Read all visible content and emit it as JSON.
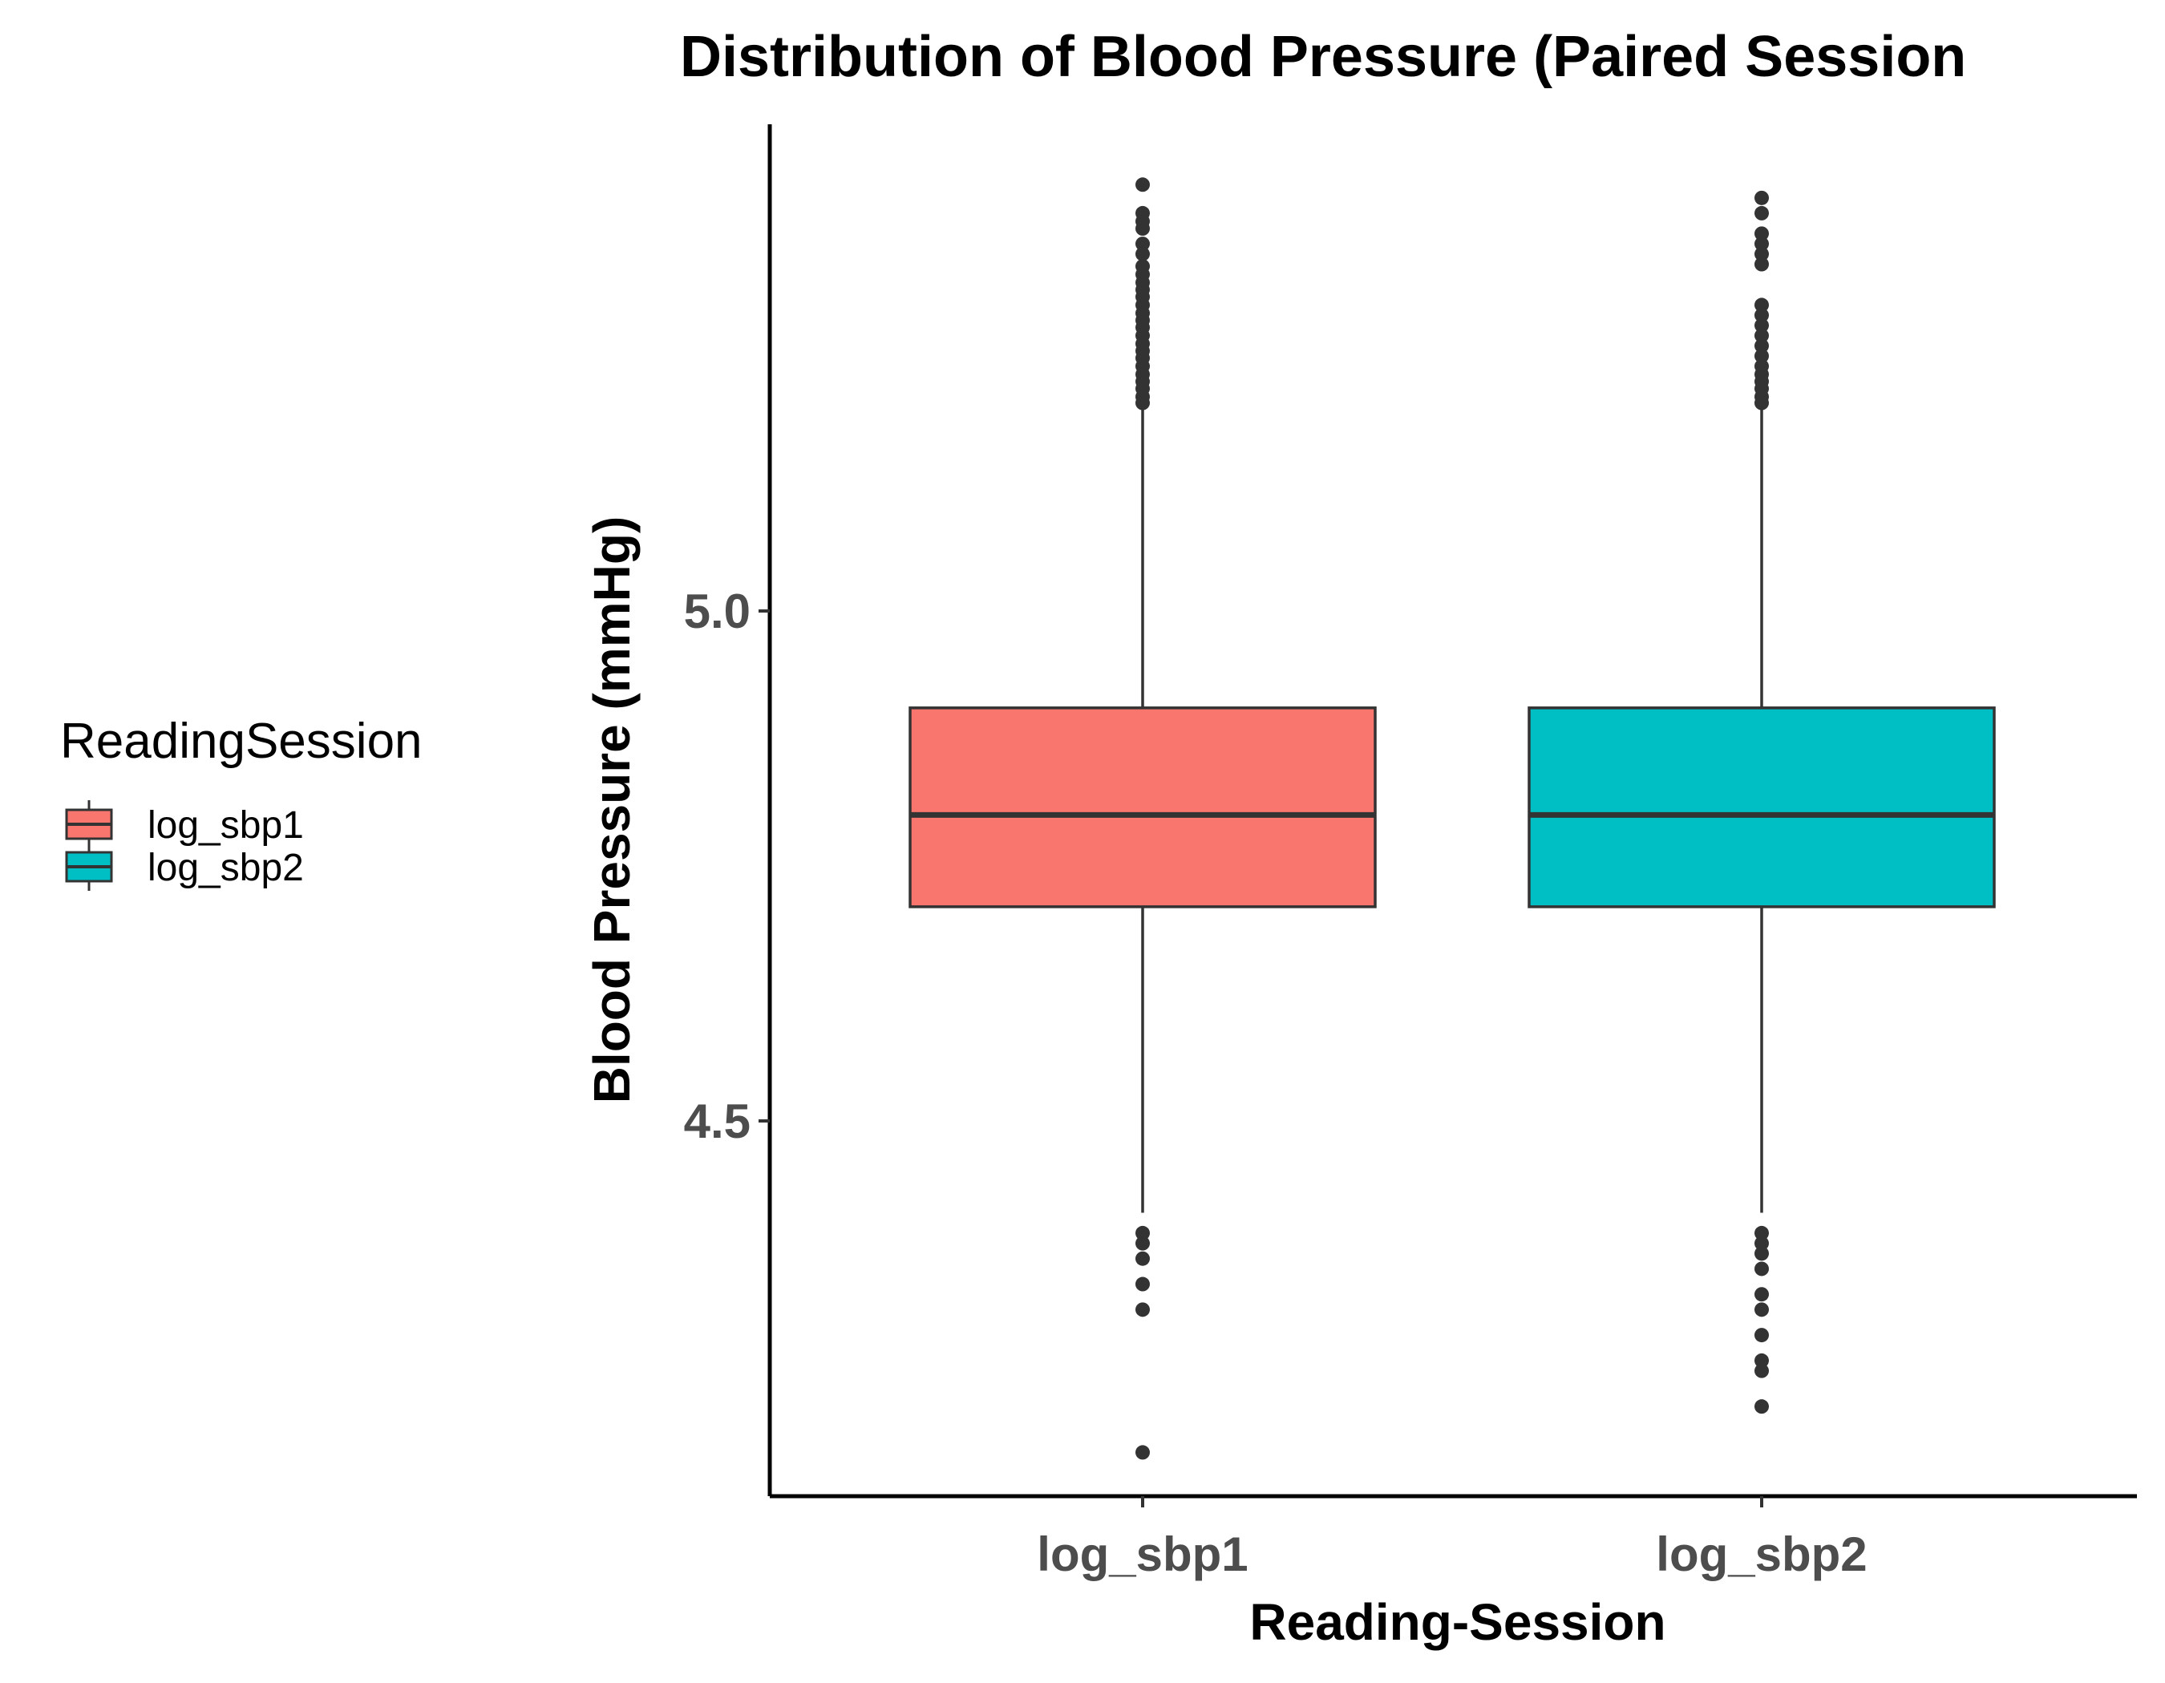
{
  "chart_data": {
    "type": "boxplot",
    "title": "Distribution of Blood Pressure (Paired Session",
    "xlabel": "Reading-Session",
    "ylabel": "Blood Pressure (mmHg)",
    "ylim": [
      4.15,
      5.48
    ],
    "yticks": [
      4.5,
      5.0
    ],
    "ytick_labels": [
      "4.5",
      "5.0"
    ],
    "grid": false,
    "legend": {
      "title": "ReadingSession",
      "position": "left",
      "entries": [
        "log_sbp1",
        "log_sbp2"
      ]
    },
    "categories": [
      "log_sbp1",
      "log_sbp2"
    ],
    "series": [
      {
        "name": "log_sbp1",
        "color": "#F8766D",
        "q1": 4.71,
        "median": 4.8,
        "q3": 4.905,
        "whisker_low": 4.41,
        "whisker_high": 5.2,
        "outliers": [
          5.418,
          5.39,
          5.382,
          5.375,
          5.36,
          5.35,
          5.338,
          5.33,
          5.322,
          5.315,
          5.308,
          5.3,
          5.292,
          5.285,
          5.278,
          5.27,
          5.262,
          5.255,
          5.248,
          5.24,
          5.232,
          5.225,
          5.218,
          5.21,
          5.204,
          4.39,
          4.38,
          4.365,
          4.34,
          4.315,
          4.175
        ]
      },
      {
        "name": "log_sbp2",
        "color": "#00BFC4",
        "q1": 4.71,
        "median": 4.8,
        "q3": 4.905,
        "whisker_low": 4.41,
        "whisker_high": 5.2,
        "outliers": [
          5.405,
          5.39,
          5.37,
          5.36,
          5.35,
          5.34,
          5.3,
          5.29,
          5.28,
          5.27,
          5.26,
          5.25,
          5.24,
          5.232,
          5.225,
          5.218,
          5.21,
          5.204,
          4.39,
          4.38,
          4.37,
          4.355,
          4.33,
          4.315,
          4.29,
          4.265,
          4.255,
          4.22
        ]
      }
    ]
  }
}
